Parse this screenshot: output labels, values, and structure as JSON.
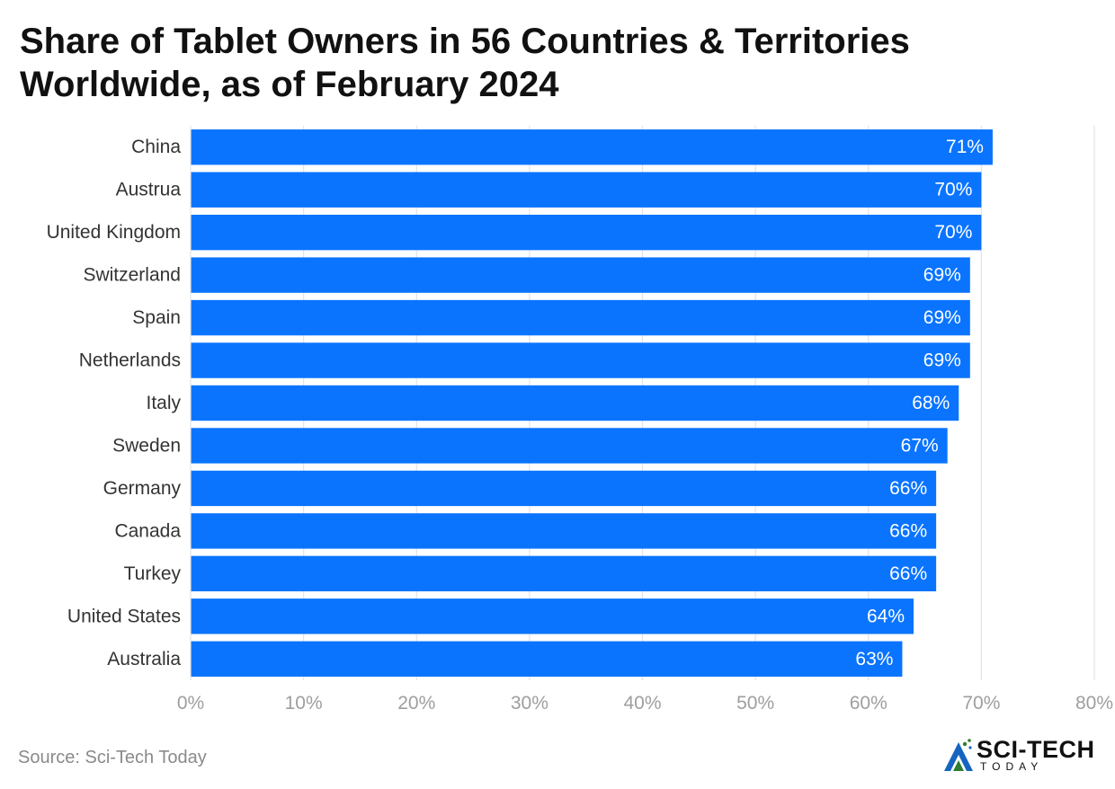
{
  "chart_data": {
    "type": "bar",
    "orientation": "horizontal",
    "title_lines": [
      "Share of Tablet Owners in 56 Countries & Territories",
      "Worldwide, as of February 2024"
    ],
    "categories": [
      "China",
      "Austrua",
      "United Kingdom",
      "Switzerland",
      "Spain",
      "Netherlands",
      "Italy",
      "Sweden",
      "Germany",
      "Canada",
      "Turkey",
      "United States",
      "Australia"
    ],
    "values": [
      71,
      70,
      70,
      69,
      69,
      69,
      68,
      67,
      66,
      66,
      66,
      64,
      63
    ],
    "value_labels": [
      "71%",
      "70%",
      "70%",
      "69%",
      "69%",
      "69%",
      "68%",
      "67%",
      "66%",
      "66%",
      "66%",
      "64%",
      "63%"
    ],
    "xlim": [
      0,
      80
    ],
    "x_ticks": [
      0,
      10,
      20,
      30,
      40,
      50,
      60,
      70,
      80
    ],
    "x_tick_labels": [
      "0%",
      "10%",
      "20%",
      "30%",
      "40%",
      "50%",
      "60%",
      "70%",
      "80%"
    ],
    "xlabel": "",
    "ylabel": "",
    "grid": true,
    "bar_color": "#0a74ff"
  },
  "footer": {
    "source": "Source: Sci-Tech Today"
  },
  "logo": {
    "main": "SCI-TECH",
    "sub": "TODAY",
    "icon": "sci-tech-leaf-logo-icon"
  }
}
